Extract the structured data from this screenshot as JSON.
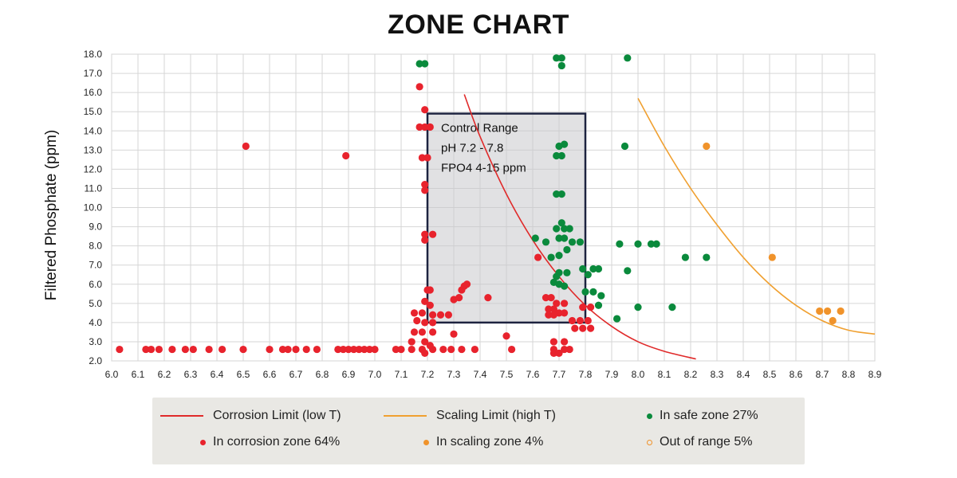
{
  "chart_data": {
    "type": "scatter",
    "title": "ZONE CHART",
    "xlabel": "",
    "ylabel": "Filtered Phosphate (ppm)",
    "xlim": [
      6.0,
      8.9
    ],
    "ylim": [
      2.0,
      18.0
    ],
    "x_ticks": [
      "6.0",
      "6.1",
      "6.2",
      "6.3",
      "6.4",
      "6.5",
      "6.6",
      "6.7",
      "6.8",
      "6.9",
      "7.0",
      "7.1",
      "7.2",
      "7.3",
      "7.4",
      "7.5",
      "7.6",
      "7.7",
      "7.8",
      "7.9",
      "8.0",
      "8.1",
      "8.2",
      "8.3",
      "8.4",
      "8.5",
      "8.6",
      "8.7",
      "8.8",
      "8.9"
    ],
    "y_ticks": [
      "2.0",
      "3.0",
      "4.0",
      "5.0",
      "6.0",
      "7.0",
      "8.0",
      "9.0",
      "10.0",
      "11.0",
      "12.0",
      "13.0",
      "14.0",
      "15.0",
      "16.0",
      "17.0",
      "18.0"
    ],
    "grid": true,
    "control_range": {
      "x_range": [
        7.2,
        7.8
      ],
      "y_range": [
        4.0,
        14.9
      ],
      "lines": [
        "Control Range",
        "pH 7.2 - 7.8",
        "FPO4 4-15 ppm"
      ]
    },
    "curves": [
      {
        "name": "Corrosion Limit (low T)",
        "color": "#e02a2a",
        "x": [
          7.34,
          7.4,
          7.5,
          7.6,
          7.7,
          7.8,
          7.9,
          8.0,
          8.1,
          8.22
        ],
        "y": [
          15.9,
          13.7,
          10.7,
          8.3,
          6.4,
          4.9,
          3.8,
          3.0,
          2.5,
          2.1
        ]
      },
      {
        "name": "Scaling Limit (high T)",
        "color": "#f0a030",
        "x": [
          8.0,
          8.1,
          8.2,
          8.3,
          8.4,
          8.5,
          8.6,
          8.7,
          8.8,
          8.9
        ],
        "y": [
          15.7,
          13.2,
          11.0,
          9.1,
          7.4,
          6.0,
          4.9,
          4.1,
          3.6,
          3.4
        ]
      }
    ],
    "series": [
      {
        "name": "In corrosion zone",
        "color": "#e8232d",
        "points": [
          [
            6.03,
            2.6
          ],
          [
            6.13,
            2.6
          ],
          [
            6.15,
            2.6
          ],
          [
            6.18,
            2.6
          ],
          [
            6.23,
            2.6
          ],
          [
            6.28,
            2.6
          ],
          [
            6.31,
            2.6
          ],
          [
            6.37,
            2.6
          ],
          [
            6.42,
            2.6
          ],
          [
            6.5,
            2.6
          ],
          [
            6.6,
            2.6
          ],
          [
            6.65,
            2.6
          ],
          [
            6.67,
            2.6
          ],
          [
            6.7,
            2.6
          ],
          [
            6.74,
            2.6
          ],
          [
            6.78,
            2.6
          ],
          [
            6.86,
            2.6
          ],
          [
            6.88,
            2.6
          ],
          [
            6.9,
            2.6
          ],
          [
            6.92,
            2.6
          ],
          [
            6.94,
            2.6
          ],
          [
            6.96,
            2.6
          ],
          [
            6.98,
            2.6
          ],
          [
            7.0,
            2.6
          ],
          [
            7.08,
            2.6
          ],
          [
            7.1,
            2.6
          ],
          [
            7.14,
            2.6
          ],
          [
            7.18,
            2.6
          ],
          [
            7.22,
            2.6
          ],
          [
            7.26,
            2.6
          ],
          [
            7.29,
            2.6
          ],
          [
            7.33,
            2.6
          ],
          [
            7.38,
            2.6
          ],
          [
            7.52,
            2.6
          ],
          [
            6.51,
            13.2
          ],
          [
            6.89,
            12.7
          ],
          [
            7.17,
            16.3
          ],
          [
            7.19,
            15.1
          ],
          [
            7.17,
            14.2
          ],
          [
            7.19,
            14.2
          ],
          [
            7.21,
            14.2
          ],
          [
            7.18,
            12.6
          ],
          [
            7.2,
            12.6
          ],
          [
            7.19,
            11.2
          ],
          [
            7.19,
            10.9
          ],
          [
            7.19,
            8.6
          ],
          [
            7.22,
            8.6
          ],
          [
            7.19,
            8.3
          ],
          [
            7.2,
            5.7
          ],
          [
            7.21,
            5.7
          ],
          [
            7.19,
            5.1
          ],
          [
            7.21,
            4.9
          ],
          [
            7.15,
            4.5
          ],
          [
            7.18,
            4.5
          ],
          [
            7.22,
            4.4
          ],
          [
            7.25,
            4.4
          ],
          [
            7.28,
            4.4
          ],
          [
            7.16,
            4.1
          ],
          [
            7.19,
            4.0
          ],
          [
            7.22,
            4.0
          ],
          [
            7.15,
            3.5
          ],
          [
            7.18,
            3.5
          ],
          [
            7.22,
            3.5
          ],
          [
            7.14,
            3.0
          ],
          [
            7.19,
            3.0
          ],
          [
            7.21,
            2.8
          ],
          [
            7.19,
            2.4
          ],
          [
            7.3,
            5.2
          ],
          [
            7.32,
            5.3
          ],
          [
            7.33,
            5.7
          ],
          [
            7.34,
            5.9
          ],
          [
            7.35,
            6.0
          ],
          [
            7.43,
            5.3
          ],
          [
            7.3,
            3.4
          ],
          [
            7.5,
            3.3
          ],
          [
            7.62,
            7.4
          ],
          [
            7.65,
            5.3
          ],
          [
            7.67,
            5.3
          ],
          [
            7.69,
            5.0
          ],
          [
            7.72,
            5.0
          ],
          [
            7.66,
            4.7
          ],
          [
            7.68,
            4.7
          ],
          [
            7.7,
            4.5
          ],
          [
            7.72,
            4.5
          ],
          [
            7.66,
            4.4
          ],
          [
            7.68,
            4.4
          ],
          [
            7.75,
            4.1
          ],
          [
            7.78,
            4.1
          ],
          [
            7.81,
            4.1
          ],
          [
            7.76,
            3.7
          ],
          [
            7.79,
            3.7
          ],
          [
            7.82,
            3.7
          ],
          [
            7.79,
            4.8
          ],
          [
            7.82,
            4.8
          ],
          [
            7.68,
            3.0
          ],
          [
            7.72,
            3.0
          ],
          [
            7.68,
            2.6
          ],
          [
            7.72,
            2.6
          ],
          [
            7.74,
            2.6
          ],
          [
            7.68,
            2.4
          ],
          [
            7.7,
            2.4
          ]
        ]
      },
      {
        "name": "In safe zone",
        "color": "#0a8a3c",
        "points": [
          [
            7.17,
            17.5
          ],
          [
            7.19,
            17.5
          ],
          [
            7.69,
            17.8
          ],
          [
            7.71,
            17.8
          ],
          [
            7.71,
            17.4
          ],
          [
            7.96,
            17.8
          ],
          [
            7.7,
            13.2
          ],
          [
            7.72,
            13.3
          ],
          [
            7.69,
            12.7
          ],
          [
            7.71,
            12.7
          ],
          [
            7.95,
            13.2
          ],
          [
            7.69,
            10.7
          ],
          [
            7.71,
            10.7
          ],
          [
            7.61,
            8.4
          ],
          [
            7.65,
            8.2
          ],
          [
            7.7,
            8.4
          ],
          [
            7.72,
            8.4
          ],
          [
            7.75,
            8.2
          ],
          [
            7.78,
            8.2
          ],
          [
            7.71,
            9.2
          ],
          [
            7.72,
            8.9
          ],
          [
            7.69,
            8.9
          ],
          [
            7.74,
            8.9
          ],
          [
            7.73,
            7.8
          ],
          [
            7.7,
            7.5
          ],
          [
            7.67,
            7.4
          ],
          [
            7.7,
            6.6
          ],
          [
            7.73,
            6.6
          ],
          [
            7.69,
            6.4
          ],
          [
            7.68,
            6.1
          ],
          [
            7.7,
            6.0
          ],
          [
            7.72,
            5.9
          ],
          [
            7.79,
            6.8
          ],
          [
            7.83,
            6.8
          ],
          [
            7.85,
            6.8
          ],
          [
            7.81,
            6.5
          ],
          [
            7.8,
            5.6
          ],
          [
            7.83,
            5.6
          ],
          [
            7.86,
            5.4
          ],
          [
            7.85,
            4.9
          ],
          [
            7.92,
            4.2
          ],
          [
            7.93,
            8.1
          ],
          [
            8.0,
            8.1
          ],
          [
            8.05,
            8.1
          ],
          [
            8.07,
            8.1
          ],
          [
            7.96,
            6.7
          ],
          [
            8.0,
            4.8
          ],
          [
            8.18,
            7.4
          ],
          [
            8.26,
            7.4
          ],
          [
            8.13,
            4.8
          ]
        ]
      },
      {
        "name": "In scaling zone",
        "color": "#f0932b",
        "points": [
          [
            8.26,
            13.2
          ],
          [
            8.51,
            7.4
          ],
          [
            8.69,
            4.6
          ],
          [
            8.72,
            4.6
          ],
          [
            8.77,
            4.6
          ],
          [
            8.74,
            4.1
          ]
        ]
      }
    ],
    "legend": {
      "placement": "bottom",
      "entries": [
        {
          "label": "Corrosion Limit (low T)",
          "marker": "line",
          "color": "#e02a2a"
        },
        {
          "label": "Scaling Limit (high T)",
          "marker": "line",
          "color": "#f0a030"
        },
        {
          "label": "In safe zone 27%",
          "marker": "dot",
          "color": "#0a8a3c"
        },
        {
          "label": "In corrosion zone 64%",
          "marker": "dot",
          "color": "#e8232d"
        },
        {
          "label": "In scaling zone 4%",
          "marker": "dot",
          "color": "#f0932b"
        },
        {
          "label": "Out of range 5%",
          "marker": "ring",
          "color": "#f0932b"
        }
      ]
    }
  }
}
